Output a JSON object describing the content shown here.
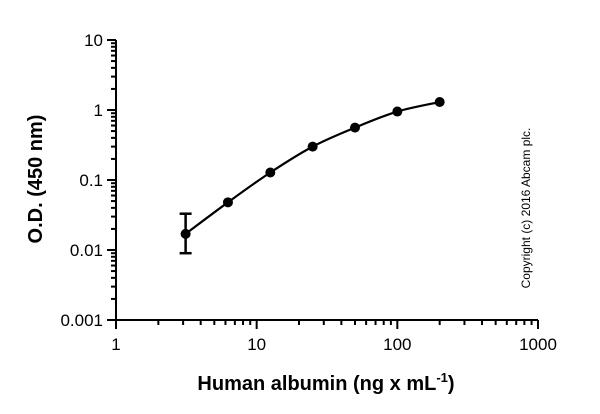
{
  "chart_data": {
    "type": "scatter",
    "x_scale": "log",
    "y_scale": "log",
    "xlim": [
      1,
      1000
    ],
    "ylim": [
      0.001,
      10
    ],
    "x_ticks": [
      1,
      10,
      100,
      1000
    ],
    "x_tick_labels": [
      "1",
      "10",
      "100",
      "1000"
    ],
    "y_ticks": [
      0.001,
      0.01,
      0.1,
      1,
      10
    ],
    "y_tick_labels": [
      "0.001",
      "0.01",
      "0.1",
      "1",
      "10"
    ],
    "xlabel": "Human albumin (ng x mL",
    "xlabel_sup": "-1",
    "xlabel_close": ")",
    "ylabel": "O.D. (450 nm)",
    "grid": false,
    "series": [
      {
        "x": [
          3.125,
          6.25,
          12.5,
          25,
          50,
          100,
          200
        ],
        "y": [
          0.017,
          0.048,
          0.128,
          0.3,
          0.56,
          0.95,
          1.3
        ],
        "y_err_low": [
          0.009,
          null,
          null,
          null,
          null,
          null,
          null
        ],
        "y_err_high": [
          0.033,
          null,
          null,
          null,
          null,
          null,
          null
        ],
        "fit_line": true
      }
    ],
    "annotation": "Copyright (c) 2016 Abcam plc."
  }
}
